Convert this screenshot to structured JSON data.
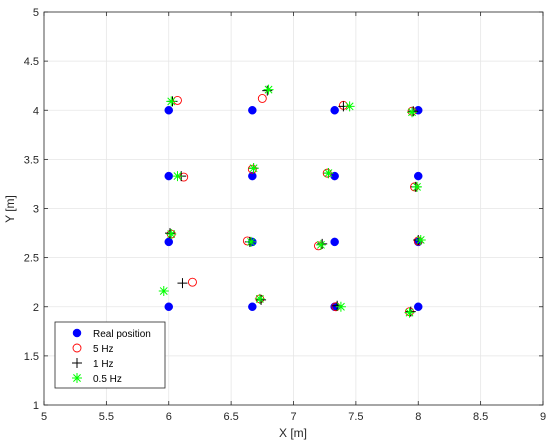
{
  "chart_data": {
    "type": "scatter",
    "xlabel": "X [m]",
    "ylabel": "Y [m]",
    "xlim": [
      5,
      9
    ],
    "ylim": [
      1,
      5
    ],
    "xticks": [
      "5",
      "5.5",
      "6",
      "6.5",
      "7",
      "7.5",
      "8",
      "8.5",
      "9"
    ],
    "yticks": [
      "1",
      "1.5",
      "2",
      "2.5",
      "3",
      "3.5",
      "4",
      "4.5",
      "5"
    ],
    "grid": true,
    "legend_position": "bottom-left",
    "series": [
      {
        "name": "Real position",
        "marker": "filled-circle",
        "color": "#0000ff",
        "points": [
          [
            6.0,
            4.0
          ],
          [
            6.67,
            4.0
          ],
          [
            7.33,
            4.0
          ],
          [
            8.0,
            4.0
          ],
          [
            6.0,
            3.33
          ],
          [
            6.67,
            3.33
          ],
          [
            7.33,
            3.33
          ],
          [
            8.0,
            3.33
          ],
          [
            6.0,
            2.66
          ],
          [
            6.67,
            2.66
          ],
          [
            7.33,
            2.66
          ],
          [
            8.0,
            2.66
          ],
          [
            6.0,
            2.0
          ],
          [
            6.67,
            2.0
          ],
          [
            7.33,
            2.0
          ],
          [
            8.0,
            2.0
          ]
        ]
      },
      {
        "name": "5 Hz",
        "marker": "open-circle",
        "color": "#ff0000",
        "points": [
          [
            6.07,
            4.1
          ],
          [
            6.75,
            4.12
          ],
          [
            7.4,
            4.05
          ],
          [
            7.95,
            3.99
          ],
          [
            6.12,
            3.32
          ],
          [
            6.67,
            3.4
          ],
          [
            7.27,
            3.36
          ],
          [
            7.97,
            3.22
          ],
          [
            6.02,
            2.74
          ],
          [
            6.63,
            2.67
          ],
          [
            7.2,
            2.62
          ],
          [
            8.0,
            2.67
          ],
          [
            6.19,
            2.25
          ],
          [
            6.73,
            2.08
          ],
          [
            7.34,
            2.0
          ],
          [
            7.93,
            1.95
          ]
        ]
      },
      {
        "name": "1 Hz",
        "marker": "plus",
        "color": "#000000",
        "points": [
          [
            6.03,
            4.09
          ],
          [
            6.79,
            4.2
          ],
          [
            7.4,
            4.04
          ],
          [
            7.96,
            3.99
          ],
          [
            6.1,
            3.33
          ],
          [
            6.68,
            3.41
          ],
          [
            7.28,
            3.36
          ],
          [
            7.98,
            3.22
          ],
          [
            6.01,
            2.75
          ],
          [
            6.65,
            2.66
          ],
          [
            7.23,
            2.64
          ],
          [
            8.0,
            2.68
          ],
          [
            6.11,
            2.24
          ],
          [
            6.74,
            2.07
          ],
          [
            7.35,
            2.01
          ],
          [
            7.94,
            1.95
          ]
        ]
      },
      {
        "name": "0.5 Hz",
        "marker": "asterisk",
        "color": "#00ff00",
        "points": [
          [
            6.02,
            4.09
          ],
          [
            6.8,
            4.21
          ],
          [
            7.45,
            4.04
          ],
          [
            7.95,
            3.98
          ],
          [
            6.07,
            3.33
          ],
          [
            6.68,
            3.41
          ],
          [
            7.28,
            3.36
          ],
          [
            7.99,
            3.22
          ],
          [
            6.02,
            2.74
          ],
          [
            6.66,
            2.66
          ],
          [
            7.22,
            2.63
          ],
          [
            8.02,
            2.68
          ],
          [
            5.96,
            2.16
          ],
          [
            6.73,
            2.08
          ],
          [
            7.38,
            2.0
          ],
          [
            7.93,
            1.94
          ]
        ]
      }
    ]
  }
}
